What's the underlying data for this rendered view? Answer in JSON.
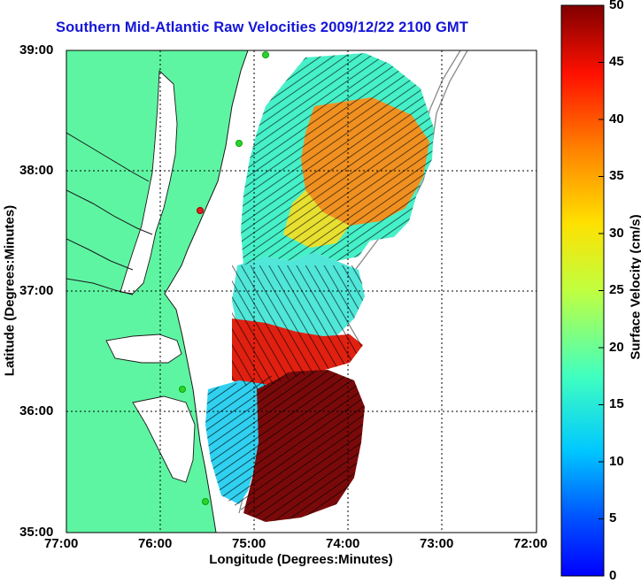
{
  "title": "Southern Mid-Atlantic Raw Velocities 2009/12/22 2100 GMT",
  "map": {
    "xlabel": "Longitude (Degrees:Minutes)",
    "ylabel": "Latitude (Degrees:Minutes)",
    "x_ticks": [
      "77:00",
      "76:00",
      "75:00",
      "74:00",
      "73:00",
      "72:00"
    ],
    "y_ticks": [
      "39:00",
      "38:00",
      "37:00",
      "36:00",
      "35:00"
    ],
    "lon_range": [
      -77,
      -72
    ],
    "lat_range": [
      35,
      39
    ],
    "land_color": "#5ef5a2",
    "grid": "dotted"
  },
  "colorbar": {
    "label": "Surface Velocity (cm/s)",
    "ticks": [
      "50",
      "45",
      "40",
      "35",
      "30",
      "25",
      "20",
      "15",
      "10",
      "5",
      "0"
    ],
    "range": [
      0,
      50
    ],
    "colormap": "jet"
  }
}
